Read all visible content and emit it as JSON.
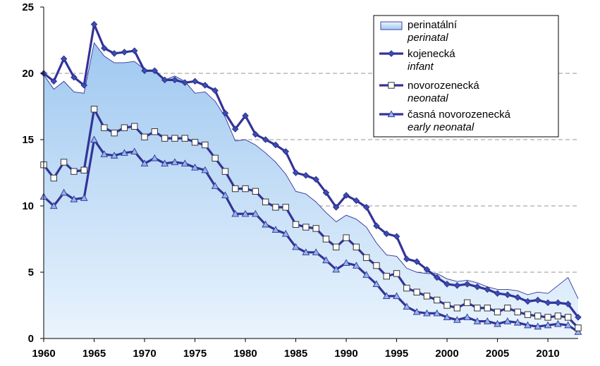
{
  "chart_data": {
    "type": "line",
    "title": "",
    "xlabel": "",
    "ylabel": "",
    "xlim": [
      1960,
      2013
    ],
    "ylim": [
      0,
      25
    ],
    "x_ticks": [
      "1960",
      "1965",
      "1970",
      "1975",
      "1980",
      "1985",
      "1990",
      "1995",
      "2000",
      "2005",
      "2010"
    ],
    "y_ticks": [
      "0",
      "5",
      "10",
      "15",
      "20",
      "25"
    ],
    "grid": "horizontal dashed",
    "legend_position": "top-right",
    "colors": {
      "line": "#333399",
      "area_fill_top": "#9FC8F0",
      "area_fill_bottom": "#EAF4FD",
      "area_outline": "#333399"
    },
    "x": [
      1960,
      1961,
      1962,
      1963,
      1964,
      1965,
      1966,
      1967,
      1968,
      1969,
      1970,
      1971,
      1972,
      1973,
      1974,
      1975,
      1976,
      1977,
      1978,
      1979,
      1980,
      1981,
      1982,
      1983,
      1984,
      1985,
      1986,
      1987,
      1988,
      1989,
      1990,
      1991,
      1992,
      1993,
      1994,
      1995,
      1996,
      1997,
      1998,
      1999,
      2000,
      2001,
      2002,
      2003,
      2004,
      2005,
      2006,
      2007,
      2008,
      2009,
      2010,
      2011,
      2012,
      2013
    ],
    "series": [
      {
        "name": "perinatální",
        "name_en": "perinatal",
        "kind": "area",
        "values": [
          19.9,
          18.8,
          19.4,
          18.6,
          18.5,
          22.3,
          21.3,
          20.8,
          20.8,
          20.9,
          20.3,
          20.1,
          19.5,
          19.8,
          19.4,
          18.5,
          18.6,
          17.9,
          16.7,
          14.9,
          15.0,
          14.6,
          14.0,
          13.3,
          12.4,
          11.1,
          10.9,
          10.3,
          9.5,
          8.8,
          9.3,
          9.0,
          8.4,
          7.2,
          6.3,
          6.2,
          5.3,
          5.0,
          4.9,
          4.9,
          4.5,
          4.3,
          4.4,
          4.2,
          3.9,
          3.7,
          3.7,
          3.6,
          3.3,
          3.5,
          3.4,
          4.0,
          4.6,
          3.0
        ]
      },
      {
        "name": "kojenecká",
        "name_en": "infant",
        "kind": "line-diamond",
        "values": [
          20.0,
          19.4,
          21.1,
          19.7,
          19.1,
          23.7,
          21.9,
          21.5,
          21.6,
          21.7,
          20.2,
          20.2,
          19.5,
          19.5,
          19.3,
          19.4,
          19.1,
          18.7,
          17.0,
          15.8,
          16.8,
          15.4,
          15.0,
          14.6,
          14.1,
          12.5,
          12.3,
          12.0,
          11.0,
          9.9,
          10.8,
          10.4,
          9.9,
          8.5,
          7.9,
          7.7,
          6.0,
          5.8,
          5.2,
          4.6,
          4.1,
          4.0,
          4.1,
          3.9,
          3.7,
          3.4,
          3.3,
          3.1,
          2.8,
          2.9,
          2.7,
          2.7,
          2.6,
          1.6
        ]
      },
      {
        "name": "novorozenecká",
        "name_en": "neonatal",
        "kind": "line-square",
        "values": [
          13.1,
          12.1,
          13.3,
          12.6,
          12.7,
          17.3,
          15.9,
          15.5,
          15.9,
          16.0,
          15.2,
          15.6,
          15.1,
          15.1,
          15.1,
          14.8,
          14.6,
          13.6,
          12.6,
          11.3,
          11.3,
          11.1,
          10.3,
          9.9,
          9.9,
          8.6,
          8.4,
          8.3,
          7.5,
          6.9,
          7.6,
          6.9,
          6.1,
          5.5,
          4.7,
          4.9,
          3.8,
          3.5,
          3.2,
          2.9,
          2.5,
          2.3,
          2.7,
          2.3,
          2.3,
          2.0,
          2.3,
          2.0,
          1.8,
          1.7,
          1.6,
          1.7,
          1.6,
          0.8
        ]
      },
      {
        "name": "časná novorozenecká",
        "name_en": "early neonatal",
        "kind": "line-triangle",
        "values": [
          10.7,
          10.0,
          11.0,
          10.5,
          10.6,
          15.0,
          13.9,
          13.8,
          14.0,
          14.1,
          13.2,
          13.6,
          13.2,
          13.3,
          13.2,
          12.9,
          12.7,
          11.5,
          10.8,
          9.4,
          9.4,
          9.4,
          8.6,
          8.2,
          7.9,
          6.9,
          6.5,
          6.5,
          5.9,
          5.2,
          5.7,
          5.5,
          4.8,
          4.1,
          3.2,
          3.2,
          2.4,
          2.0,
          1.9,
          1.9,
          1.6,
          1.4,
          1.6,
          1.3,
          1.3,
          1.1,
          1.3,
          1.2,
          1.0,
          0.9,
          1.0,
          1.1,
          1.0,
          0.5
        ]
      }
    ]
  }
}
